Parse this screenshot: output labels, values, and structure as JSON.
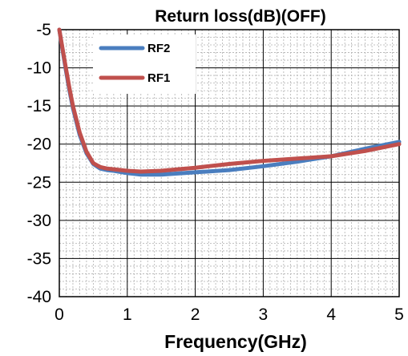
{
  "chart_data": {
    "type": "line",
    "title": "Return loss(dB)(OFF)",
    "xlabel": "Frequency(GHz)",
    "ylabel": "",
    "xlim": [
      0,
      5
    ],
    "ylim": [
      -40,
      -5
    ],
    "x_ticks": [
      0,
      1,
      2,
      3,
      4,
      5
    ],
    "y_ticks": [
      -40,
      -35,
      -30,
      -25,
      -20,
      -15,
      -10,
      -5
    ],
    "x_minor_step": 0.1,
    "y_minor_step": 1,
    "grid": true,
    "legend_position": "top-left",
    "series": [
      {
        "name": "RF2",
        "color": "#4a7ebf",
        "x": [
          0.0,
          0.05,
          0.1,
          0.15,
          0.2,
          0.3,
          0.4,
          0.5,
          0.6,
          0.7,
          0.8,
          1.0,
          1.2,
          1.5,
          2.0,
          2.5,
          3.0,
          3.5,
          4.0,
          4.5,
          5.0
        ],
        "y": [
          -5.0,
          -7.8,
          -10.5,
          -13.0,
          -15.3,
          -18.8,
          -21.2,
          -22.6,
          -23.2,
          -23.4,
          -23.5,
          -23.8,
          -24.0,
          -24.0,
          -23.7,
          -23.4,
          -22.9,
          -22.3,
          -21.6,
          -20.6,
          -19.7
        ]
      },
      {
        "name": "RF1",
        "color": "#c0504d",
        "x": [
          0.0,
          0.05,
          0.1,
          0.15,
          0.2,
          0.3,
          0.4,
          0.5,
          0.6,
          0.7,
          0.8,
          1.0,
          1.2,
          1.5,
          2.0,
          2.5,
          3.0,
          3.5,
          4.0,
          4.5,
          5.0
        ],
        "y": [
          -5.0,
          -7.6,
          -10.2,
          -12.7,
          -15.0,
          -18.5,
          -21.0,
          -22.5,
          -23.0,
          -23.2,
          -23.3,
          -23.5,
          -23.6,
          -23.5,
          -23.1,
          -22.6,
          -22.2,
          -21.9,
          -21.6,
          -20.9,
          -20.0
        ]
      }
    ]
  }
}
